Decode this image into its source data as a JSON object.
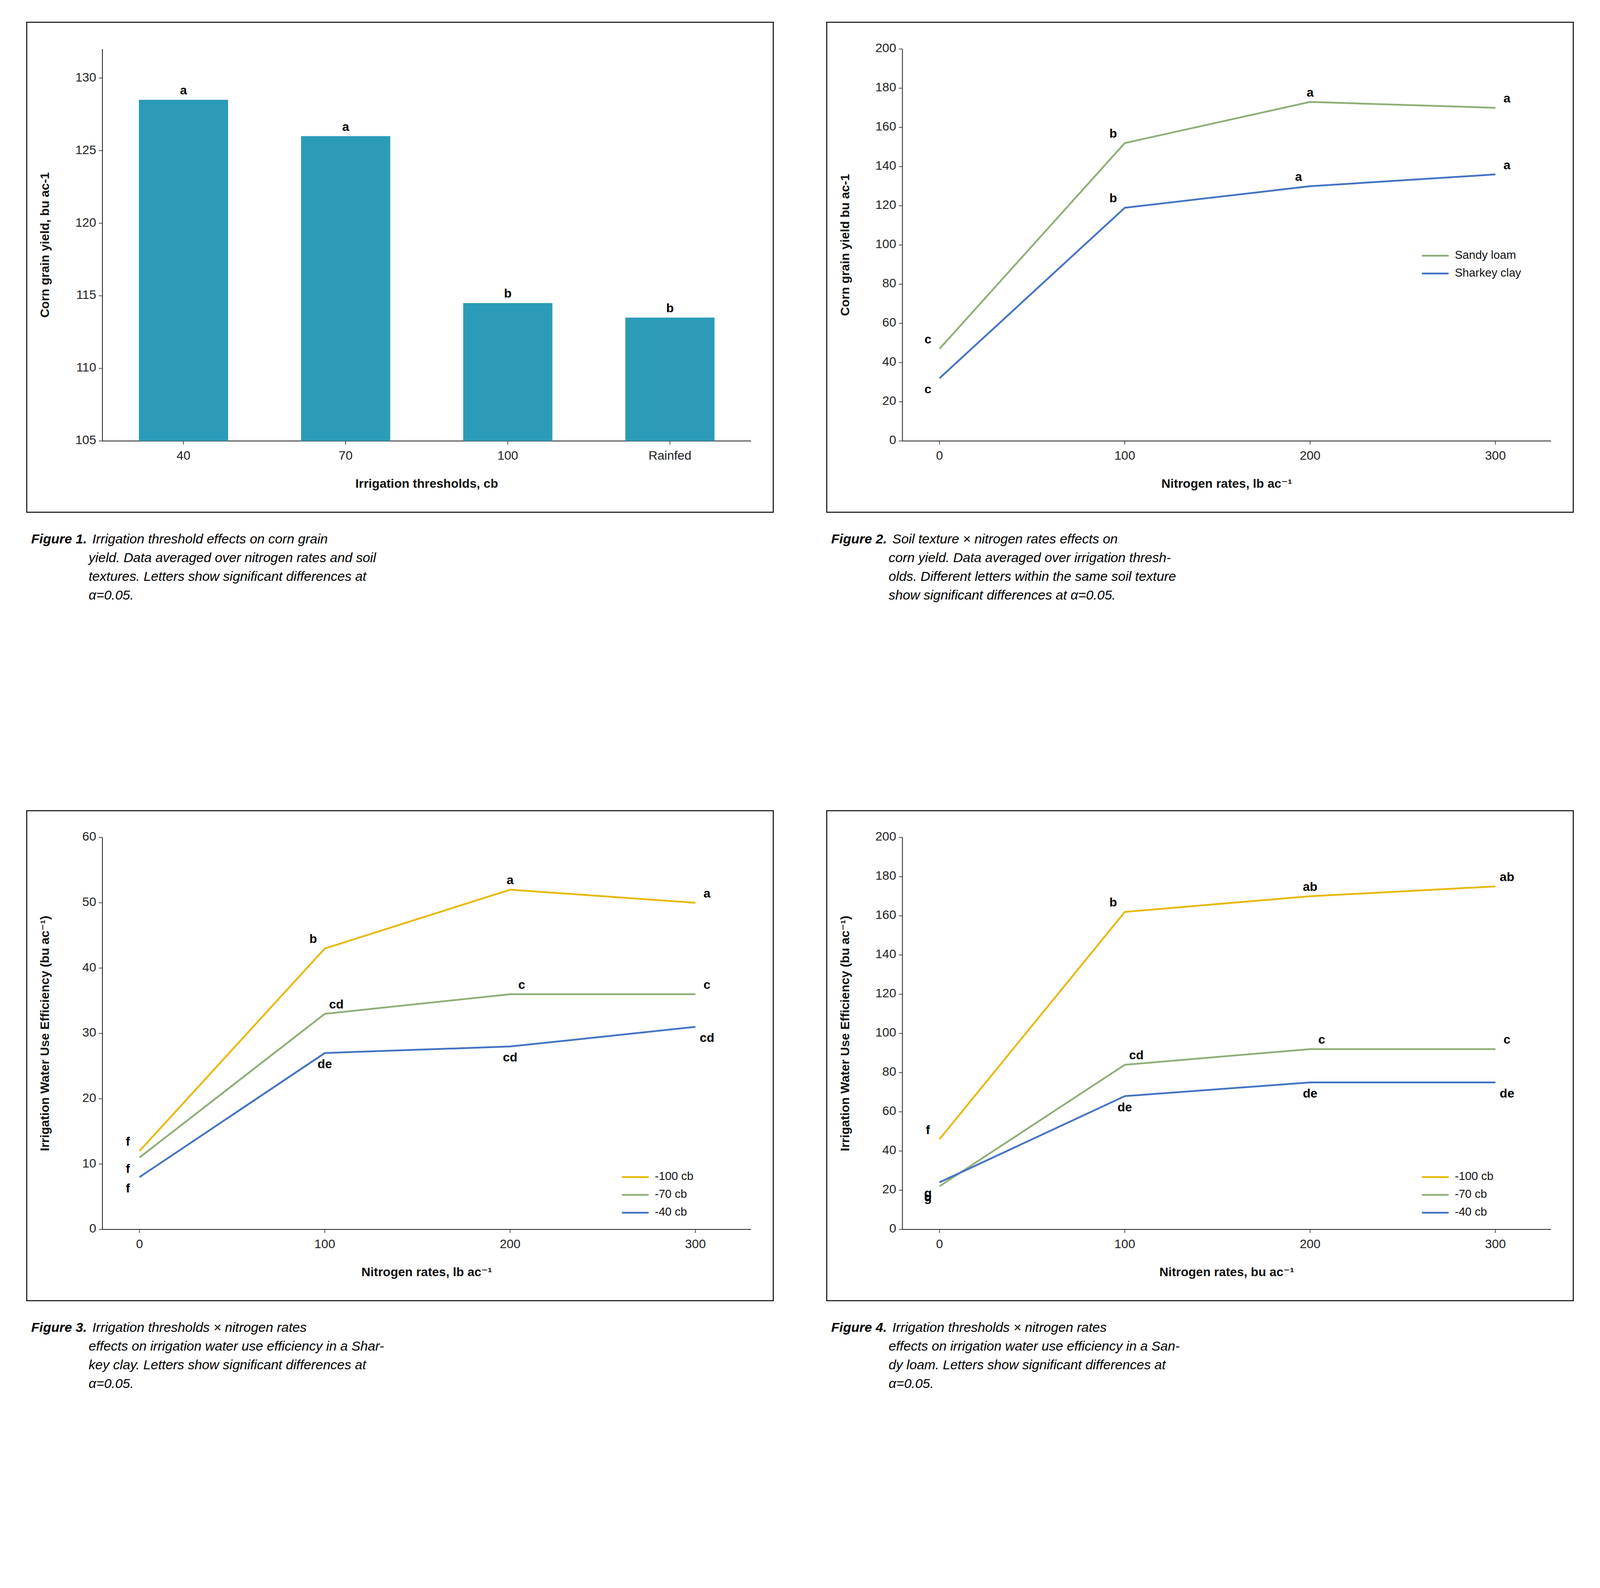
{
  "chart_data": [
    {
      "type": "bar",
      "categories": [
        "40",
        "70",
        "100",
        "Rainfed"
      ],
      "values": [
        128.5,
        126.0,
        114.5,
        113.5
      ],
      "color": "#2B9BB8",
      "letters": [
        "a",
        "a",
        "b",
        "b"
      ],
      "ylabel": "Corn grain yield, bu ac-1",
      "xlabel": "Irrigation thresholds, cb",
      "ylim": [
        105,
        132
      ],
      "yticks": [
        105,
        110,
        115,
        120,
        125,
        130
      ],
      "caption_label": "Figure 1.",
      "caption": " Irrigation threshold effects on corn grain\nyield. Data averaged over nitrogen rates and soil\ntextures. Letters show significant differences at\nα=0.05."
    },
    {
      "type": "line",
      "x": [
        0,
        100,
        200,
        300
      ],
      "series": [
        {
          "name": "Sandy loam",
          "color": "#8FAE77",
          "values": [
            47,
            152,
            173,
            170
          ],
          "letters": [
            "c",
            "b",
            "a",
            "a"
          ]
        },
        {
          "name": "Sharkey clay",
          "color": "#4472C4",
          "values": [
            32,
            119,
            130,
            136
          ],
          "letters": [
            "c",
            "b",
            "a",
            "a"
          ]
        }
      ],
      "ylabel": "Corn grain yield bu ac-1",
      "xlabel": "Nitrogen rates, lb ac⁻¹",
      "xlim": [
        -20,
        330
      ],
      "xticks": [
        0,
        100,
        200,
        300
      ],
      "ylim": [
        0,
        200
      ],
      "yticks": [
        0,
        20,
        40,
        60,
        80,
        100,
        120,
        140,
        160,
        180,
        200
      ],
      "legend": "right",
      "caption_label": "Figure 2.",
      "caption": " Soil texture × nitrogen rates effects on\ncorn yield. Data averaged over irrigation thresh-\nolds. Different letters within the same soil texture\nshow significant differences at α=0.05."
    },
    {
      "type": "line",
      "x": [
        0,
        100,
        200,
        300
      ],
      "series": [
        {
          "name": "-100 cb",
          "color": "#E8B800",
          "values": [
            12,
            43,
            52,
            50
          ],
          "letters": [
            "f",
            "b",
            "a",
            "a"
          ]
        },
        {
          "name": "-70 cb",
          "color": "#8FAE77",
          "values": [
            11,
            33,
            36,
            36
          ],
          "letters": [
            "f",
            "cd",
            "c",
            "c"
          ]
        },
        {
          "name": "-40 cb",
          "color": "#4472C4",
          "values": [
            8,
            27,
            28,
            31
          ],
          "letters": [
            "f",
            "de",
            "cd",
            "cd"
          ]
        }
      ],
      "ylabel": "Irrigation Water Use Efficiency (bu ac⁻¹)",
      "xlabel": "Nitrogen rates, lb ac⁻¹",
      "xlim": [
        -20,
        330
      ],
      "xticks": [
        0,
        100,
        200,
        300
      ],
      "ylim": [
        0,
        60
      ],
      "yticks": [
        0,
        10,
        20,
        30,
        40,
        50,
        60
      ],
      "legend": "lower right",
      "caption_label": "Figure 3.",
      "caption": " Irrigation thresholds × nitrogen rates\neffects on irrigation water use efficiency in a Shar-\nkey clay. Letters show significant differences at\nα=0.05."
    },
    {
      "type": "line",
      "x": [
        0,
        100,
        200,
        300
      ],
      "series": [
        {
          "name": "-100 cb",
          "color": "#E8B800",
          "values": [
            46,
            162,
            170,
            175
          ],
          "letters": [
            "f",
            "b",
            "ab",
            "ab"
          ]
        },
        {
          "name": "-70 cb",
          "color": "#8FAE77",
          "values": [
            22,
            84,
            92,
            92
          ],
          "letters": [
            "g",
            "cd",
            "c",
            "c"
          ]
        },
        {
          "name": "-40 cb",
          "color": "#4472C4",
          "values": [
            24,
            68,
            75,
            75
          ],
          "letters": [
            "g",
            "de",
            "de",
            "de"
          ]
        }
      ],
      "ylabel": "Irrigation Water Use Efficiency (bu ac⁻¹)",
      "xlabel": "Nitrogen rates, bu ac⁻¹",
      "xlim": [
        -20,
        330
      ],
      "xticks": [
        0,
        100,
        200,
        300
      ],
      "ylim": [
        0,
        200
      ],
      "yticks": [
        0,
        20,
        40,
        60,
        80,
        100,
        120,
        140,
        160,
        180,
        200
      ],
      "legend": "lower right",
      "caption_label": "Figure 4.",
      "caption": " Irrigation thresholds × nitrogen rates\neffects on irrigation water use efficiency in a San-\ndy loam. Letters show significant differences at\nα=0.05."
    }
  ]
}
